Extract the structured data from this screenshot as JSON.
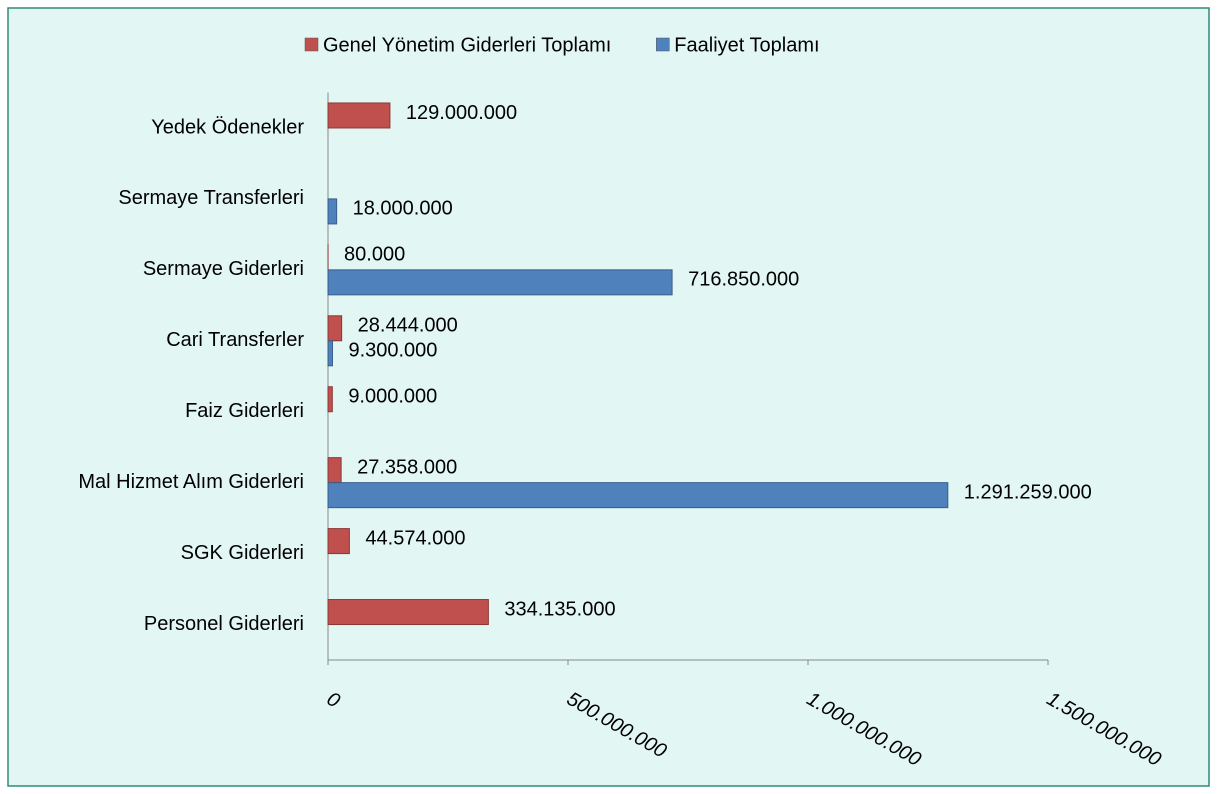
{
  "chart_data": {
    "type": "hbar",
    "categories": [
      "Yedek Ödenekler",
      "Sermaye Transferleri",
      "Sermaye Giderleri",
      "Cari Transferler",
      "Faiz Giderleri",
      "Mal Hizmet Alım Giderleri",
      "SGK Giderleri",
      "Personel Giderleri"
    ],
    "series": [
      {
        "name": "Genel Yönetim Giderleri Toplamı",
        "color": "#c0504d",
        "values": [
          129000000,
          null,
          80000,
          28444000,
          9000000,
          27358000,
          44574000,
          334135000
        ],
        "value_labels": [
          "129.000.000",
          null,
          "80.000",
          "28.444.000",
          "9.000.000",
          "27.358.000",
          "44.574.000",
          "334.135.000"
        ]
      },
      {
        "name": "Faaliyet Toplamı",
        "color": "#4f81bd",
        "values": [
          null,
          18000000,
          716850000,
          9300000,
          null,
          1291259000,
          null,
          null
        ],
        "value_labels": [
          null,
          "18.000.000",
          "716.850.000",
          "9.300.000",
          null,
          "1.291.259.000",
          null,
          null
        ]
      }
    ],
    "xlim": [
      0,
      1500000000
    ],
    "xticks": [
      0,
      {
        "value": 500000000,
        "label": "500.000.000"
      },
      {
        "value": 1000000000,
        "label": "1.000.000.000"
      },
      {
        "value": 1500000000,
        "label": "1.500.000.000"
      }
    ],
    "legend": "top"
  }
}
